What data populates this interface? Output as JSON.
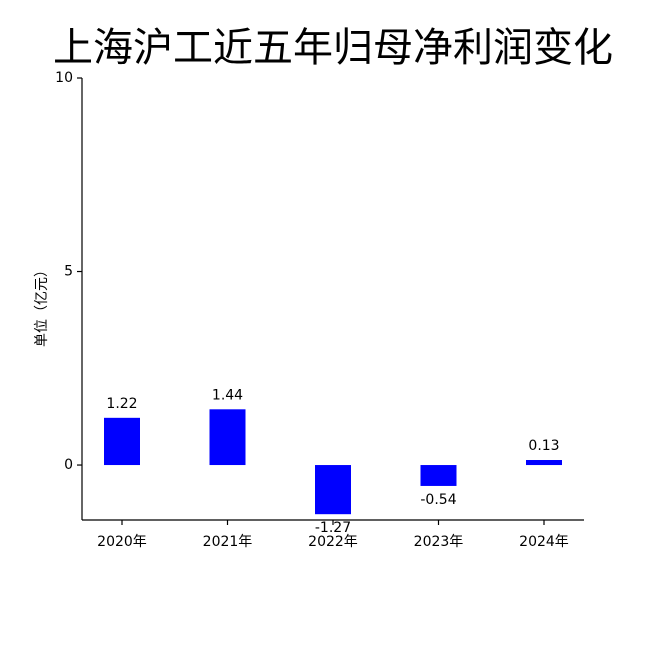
{
  "chart_data": {
    "type": "bar",
    "title": "上海沪工近五年归母净利润变化",
    "ylabel": "单位（亿元）",
    "categories": [
      "2020年",
      "2021年",
      "2022年",
      "2023年",
      "2024年"
    ],
    "values": [
      1.22,
      1.44,
      -1.27,
      -0.54,
      0.13
    ],
    "color": "#0000ff",
    "ylim": [
      -1.42,
      10
    ],
    "yticks": [
      0,
      5,
      10
    ],
    "grid": false
  }
}
